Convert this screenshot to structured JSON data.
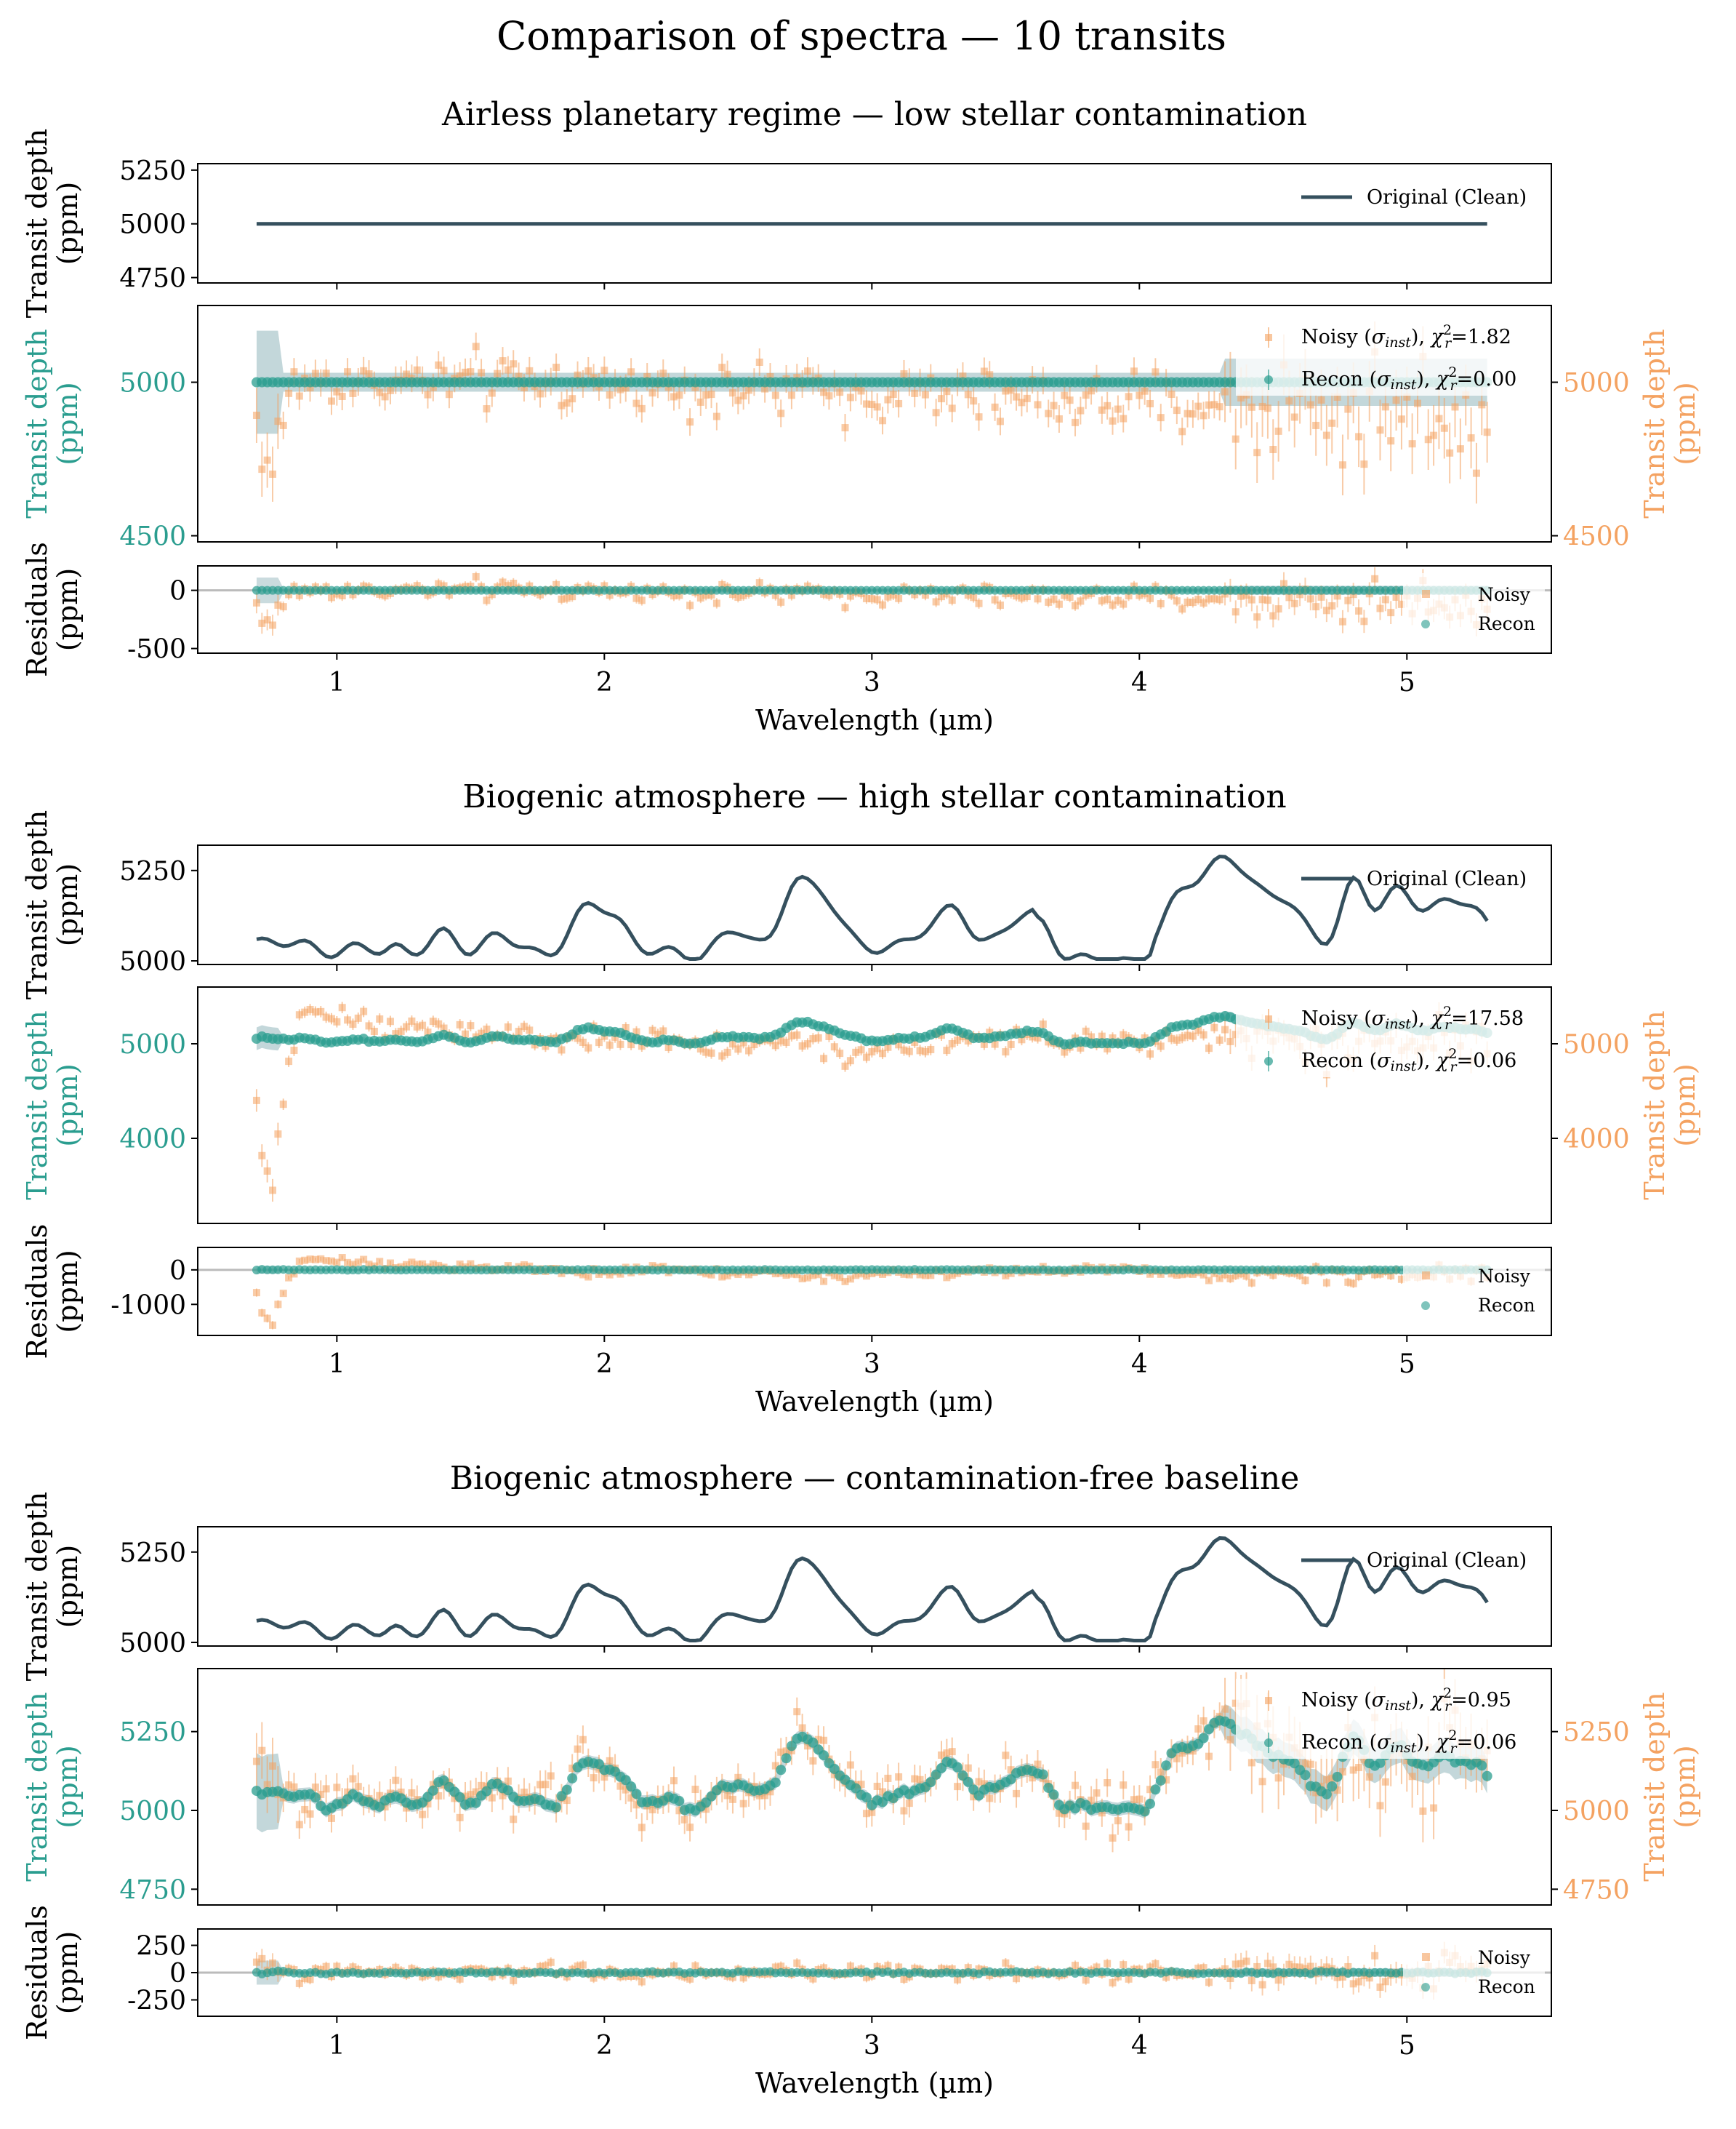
{
  "figure": {
    "title": "Comparison of spectra — 10 transits"
  },
  "colors": {
    "clean": "#35505e",
    "recon": "#2a9d8f",
    "noisy": "#f4a261",
    "axis": "#000000",
    "zero_line": "#bbbbbb"
  },
  "chart_data": [
    {
      "type": "line",
      "title": "Airless planetary regime — low stellar contamination",
      "xlabel": "Wavelength (µm)",
      "xlim": [
        0.48,
        5.54
      ],
      "xticks": [
        1,
        2,
        3,
        4,
        5
      ],
      "panels": {
        "clean": {
          "ylabel": "Transit depth\n(ppm)",
          "ylim": [
            4725,
            5280
          ],
          "yticks": [
            4750,
            5000,
            5250
          ],
          "legend": [
            "Original (Clean)"
          ],
          "series": [
            {
              "name": "Original (Clean)",
              "shape": "flat",
              "x_range": [
                0.7,
                5.3
              ],
              "baseline": 5000
            }
          ]
        },
        "recon": {
          "ylabel_left": "Transit depth\n(ppm)",
          "ylabel_right": "Transit depth\n(ppm)",
          "ylim": [
            4480,
            5250
          ],
          "yticks": [
            4500,
            5000
          ],
          "legend": [
            {
              "name": "Noisy (σinst), χr²=1.82",
              "label": "Noisy",
              "chi": "1.82"
            },
            {
              "name": "Recon (σinst), χr²=0.00",
              "label": "Recon",
              "chi": "0.00"
            }
          ],
          "noisy": {
            "baseline": 5000,
            "noise_ppm": 45,
            "dip_ppm": 300,
            "slope_ppm": -110,
            "error_ppm": 45
          },
          "recon_series": {
            "baseline": 5000,
            "flat": true
          }
        },
        "residuals": {
          "ylabel": "Residuals\n(ppm)",
          "ylim": [
            -540,
            210
          ],
          "yticks": [
            0,
            -500
          ],
          "legend": [
            "Noisy",
            "Recon"
          ]
        }
      }
    },
    {
      "type": "line",
      "title": "Biogenic atmosphere — high stellar contamination",
      "xlabel": "Wavelength (µm)",
      "xlim": [
        0.48,
        5.54
      ],
      "xticks": [
        1,
        2,
        3,
        4,
        5
      ],
      "panels": {
        "clean": {
          "ylabel": "Transit depth\n(ppm)",
          "ylim": [
            4990,
            5320
          ],
          "yticks": [
            5000,
            5250
          ],
          "legend": [
            "Original (Clean)"
          ],
          "series": [
            {
              "name": "Original (Clean)",
              "shape": "biogenic",
              "x_range": [
                0.7,
                5.3
              ],
              "baseline": 5000
            }
          ]
        },
        "recon": {
          "ylabel_left": "Transit depth\n(ppm)",
          "ylabel_right": "Transit depth\n(ppm)",
          "ylim": [
            3100,
            5600
          ],
          "yticks": [
            4000,
            5000
          ],
          "legend": [
            {
              "name": "Noisy (σinst), χr²=17.58",
              "label": "Noisy",
              "chi": "17.58"
            },
            {
              "name": "Recon (σinst), χr²=0.06",
              "label": "Recon",
              "chi": "0.06"
            }
          ],
          "noisy": {
            "baseline": 5000,
            "noise_ppm": 60,
            "dip_ppm": 1600,
            "contamination": true,
            "error_ppm": 60
          },
          "recon_series": {
            "baseline": 5000,
            "flat": false
          }
        },
        "residuals": {
          "ylabel": "Residuals\n(ppm)",
          "ylim": [
            -1900,
            650
          ],
          "yticks": [
            0,
            -1000
          ],
          "legend": [
            "Noisy",
            "Recon"
          ]
        }
      }
    },
    {
      "type": "line",
      "title": "Biogenic atmosphere — contamination-free baseline",
      "xlabel": "Wavelength (µm)",
      "xlim": [
        0.48,
        5.54
      ],
      "xticks": [
        1,
        2,
        3,
        4,
        5
      ],
      "panels": {
        "clean": {
          "ylabel": "Transit depth\n(ppm)",
          "ylim": [
            4990,
            5320
          ],
          "yticks": [
            5000,
            5250
          ],
          "legend": [
            "Original (Clean)"
          ],
          "series": [
            {
              "name": "Original (Clean)",
              "shape": "biogenic",
              "x_range": [
                0.7,
                5.3
              ],
              "baseline": 5000
            }
          ]
        },
        "recon": {
          "ylabel_left": "Transit depth\n(ppm)",
          "ylabel_right": "Transit depth\n(ppm)",
          "ylim": [
            4700,
            5450
          ],
          "yticks": [
            4750,
            5000,
            5250
          ],
          "legend": [
            {
              "name": "Noisy (σinst), χr²=0.95",
              "label": "Noisy",
              "chi": "0.95"
            },
            {
              "name": "Recon (σinst), χr²=0.06",
              "label": "Recon",
              "chi": "0.06"
            }
          ],
          "noisy": {
            "baseline": 5000,
            "noise_ppm": 40,
            "dip_ppm": 0,
            "contamination": false,
            "error_ppm": 45
          },
          "recon_series": {
            "baseline": 5000,
            "flat": false
          }
        },
        "residuals": {
          "ylabel": "Residuals\n(ppm)",
          "ylim": [
            -400,
            400
          ],
          "yticks": [
            250,
            0,
            -250
          ],
          "legend": [
            "Noisy",
            "Recon"
          ]
        }
      }
    }
  ]
}
